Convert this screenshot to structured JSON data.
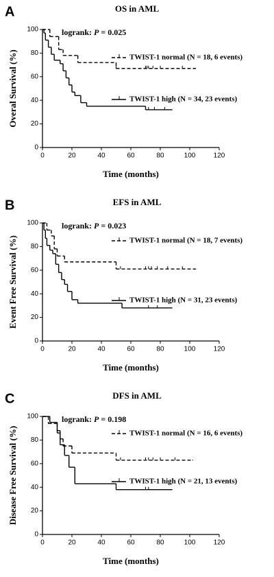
{
  "chart_data": [
    {
      "type": "step",
      "panel": "A",
      "title": "OS in AML",
      "annotation": [
        "logrank: ",
        "P",
        " = 0.025"
      ],
      "xlabel": "Time (months)",
      "ylabel": "Overal Survival (%)",
      "xlim": [
        0,
        120
      ],
      "ylim": [
        0,
        100
      ],
      "xticks": [
        0,
        20,
        40,
        60,
        80,
        100,
        120
      ],
      "yticks": [
        0,
        20,
        40,
        60,
        80,
        100
      ],
      "series": [
        {
          "name": "TWIST-1 normal (N = 18, 6 events)",
          "color": "#000000",
          "line_style": "dashed",
          "x": [
            0,
            5,
            11,
            14,
            24,
            50,
            104
          ],
          "values": [
            100,
            94,
            83,
            78,
            72,
            67,
            67
          ],
          "censored": {
            "x": [
              50,
              70,
              71,
              72,
              75,
              80,
              95
            ],
            "values": [
              67,
              67,
              67,
              67,
              67,
              67,
              67
            ]
          }
        },
        {
          "name": "TWIST-1 high (N = 34, 23 events)",
          "color": "#000000",
          "line_style": "solid",
          "x": [
            0,
            1,
            2,
            4,
            6,
            8,
            12,
            14,
            16,
            18,
            20,
            22,
            26,
            30,
            70,
            88
          ],
          "values": [
            100,
            97,
            91,
            85,
            79,
            74,
            71,
            65,
            59,
            53,
            47,
            44,
            38,
            35,
            32,
            32
          ],
          "censored": {
            "x": [
              72,
              76,
              83
            ],
            "values": [
              32,
              32,
              32
            ]
          }
        }
      ]
    },
    {
      "type": "step",
      "panel": "B",
      "title": "EFS in AML",
      "annotation": [
        "logrank: ",
        "P",
        " = 0.023"
      ],
      "xlabel": "Time (months)",
      "ylabel": "Event Free Survival (%)",
      "xlim": [
        0,
        120
      ],
      "ylim": [
        0,
        100
      ],
      "xticks": [
        0,
        20,
        40,
        60,
        80,
        100,
        120
      ],
      "yticks": [
        0,
        20,
        40,
        60,
        80,
        100
      ],
      "series": [
        {
          "name": "TWIST-1 normal (N = 18, 7 events)",
          "color": "#000000",
          "line_style": "dashed",
          "x": [
            0,
            3,
            6,
            8,
            10,
            15,
            50,
            104
          ],
          "values": [
            100,
            94,
            89,
            78,
            72,
            67,
            61,
            61
          ],
          "censored": {
            "x": [
              53,
              70,
              72,
              74,
              78,
              85,
              95
            ],
            "values": [
              61,
              61,
              61,
              61,
              61,
              61,
              61
            ]
          }
        },
        {
          "name": "TWIST-1 high (N = 31, 23 events)",
          "color": "#000000",
          "line_style": "solid",
          "x": [
            0,
            1,
            2,
            3,
            5,
            7,
            9,
            11,
            13,
            15,
            17,
            20,
            24,
            54,
            88
          ],
          "values": [
            100,
            94,
            87,
            81,
            77,
            74,
            65,
            58,
            52,
            48,
            42,
            35,
            32,
            28,
            28
          ],
          "censored": {
            "x": [
              72,
              78
            ],
            "values": [
              28,
              28
            ]
          }
        }
      ]
    },
    {
      "type": "step",
      "panel": "C",
      "title": "DFS in AML",
      "annotation": [
        "logrank: ",
        "P",
        " = 0.198"
      ],
      "xlabel": "Time (months)",
      "ylabel": "Disease Free Survival (%)",
      "xlim": [
        0,
        120
      ],
      "ylim": [
        0,
        100
      ],
      "xticks": [
        0,
        20,
        40,
        60,
        80,
        100,
        120
      ],
      "yticks": [
        0,
        20,
        40,
        60,
        80,
        100
      ],
      "series": [
        {
          "name": "TWIST-1 normal (N = 16, 6 events)",
          "color": "#000000",
          "line_style": "dashed",
          "x": [
            0,
            4,
            10,
            12,
            14,
            20,
            50,
            102
          ],
          "values": [
            100,
            94,
            88,
            81,
            75,
            69,
            63,
            63
          ],
          "censored": {
            "x": [
              53,
              70,
              72,
              75,
              80,
              90
            ],
            "values": [
              63,
              63,
              63,
              63,
              63,
              63
            ]
          }
        },
        {
          "name": "TWIST-1 high (N = 21, 13 events)",
          "color": "#000000",
          "line_style": "solid",
          "x": [
            0,
            5,
            10,
            12,
            15,
            18,
            22,
            50,
            88
          ],
          "values": [
            100,
            95,
            86,
            76,
            67,
            57,
            43,
            38,
            38
          ],
          "censored": {
            "x": [
              70,
              72
            ],
            "values": [
              38,
              38
            ]
          }
        }
      ]
    }
  ]
}
